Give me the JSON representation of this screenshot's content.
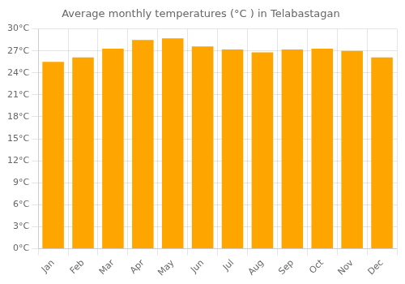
{
  "chart_data": {
    "type": "bar",
    "title": "Average monthly temperatures (°C ) in Telabastagan",
    "categories": [
      "Jan",
      "Feb",
      "Mar",
      "Apr",
      "May",
      "Jun",
      "Jul",
      "Aug",
      "Sep",
      "Oct",
      "Nov",
      "Dec"
    ],
    "values": [
      25.5,
      26.1,
      27.3,
      28.5,
      28.7,
      27.6,
      27.2,
      26.8,
      27.2,
      27.3,
      27.0,
      26.1
    ],
    "color": "#FFA500",
    "ylim": [
      0,
      30
    ],
    "yticks": [
      {
        "value": 0,
        "label": "0°C"
      },
      {
        "value": 3,
        "label": "3°C"
      },
      {
        "value": 6,
        "label": "6°C"
      },
      {
        "value": 9,
        "label": "9°C"
      },
      {
        "value": 12,
        "label": "12°C"
      },
      {
        "value": 15,
        "label": "15°C"
      },
      {
        "value": 18,
        "label": "18°C"
      },
      {
        "value": 21,
        "label": "21°C"
      },
      {
        "value": 24,
        "label": "24°C"
      },
      {
        "value": 27,
        "label": "27°C"
      },
      {
        "value": 30,
        "label": "30°C"
      }
    ],
    "grid": true
  }
}
